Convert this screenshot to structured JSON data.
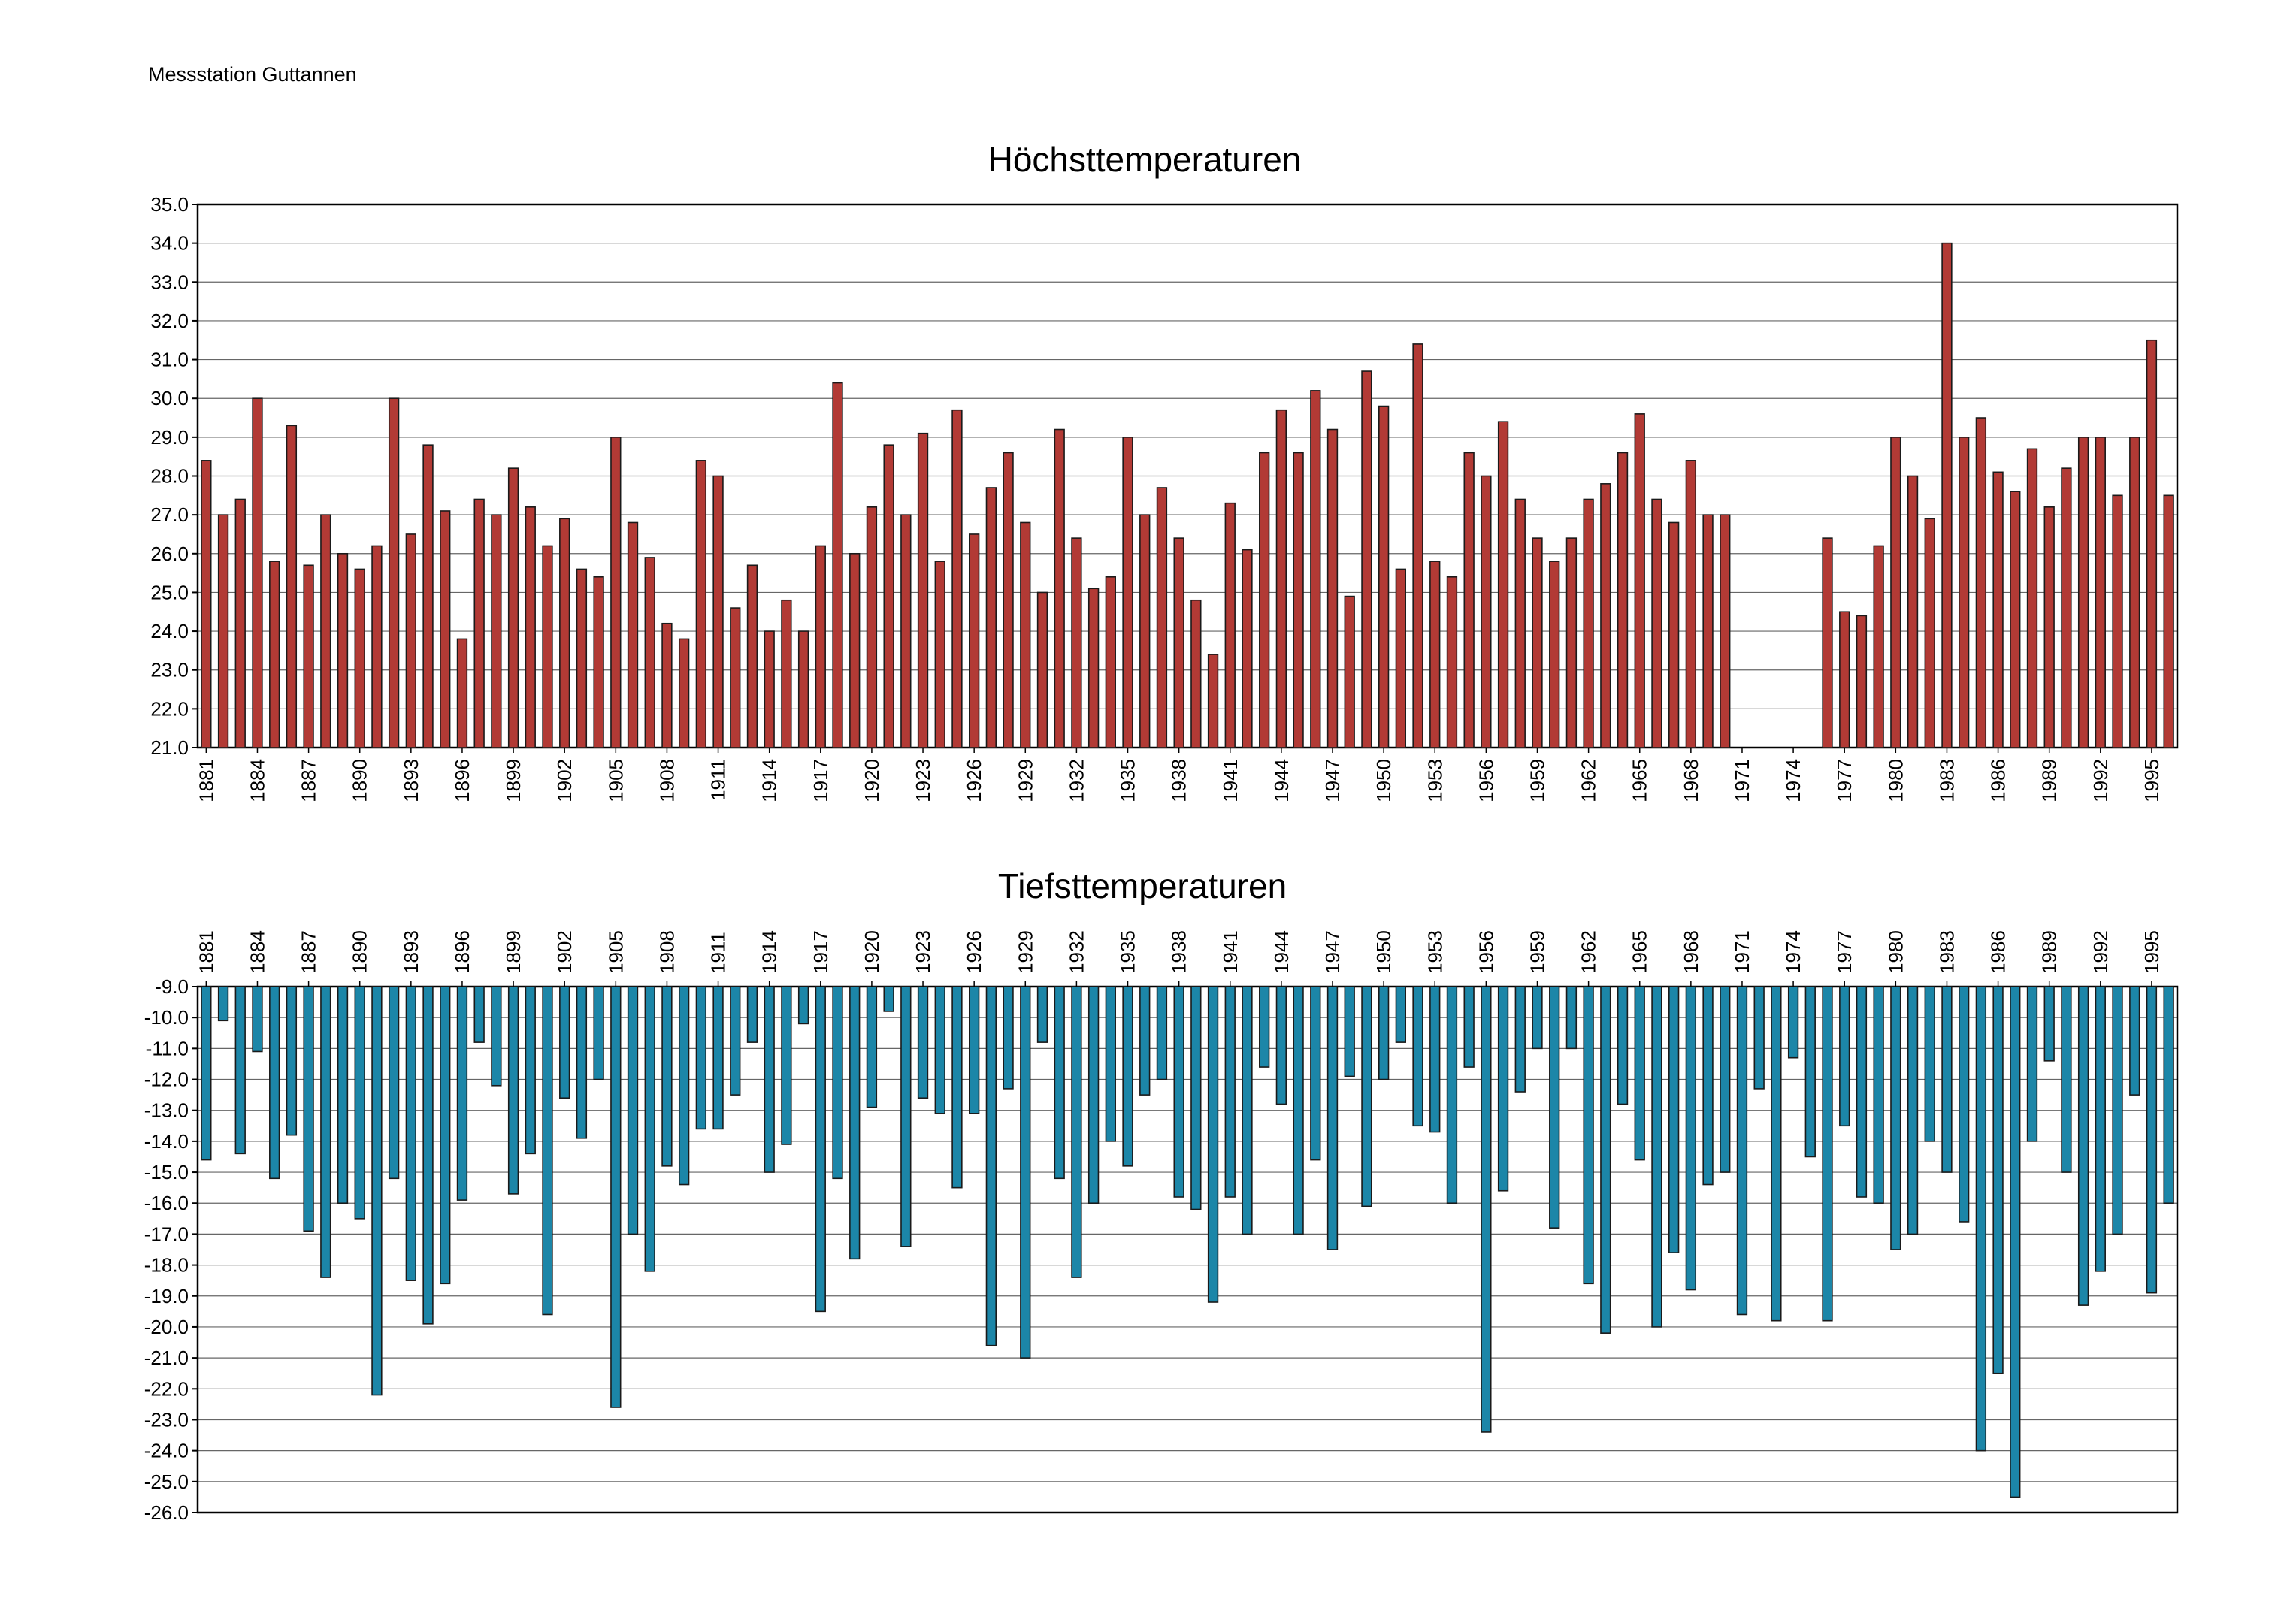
{
  "page": {
    "station": "Messstation Guttannen"
  },
  "colors": {
    "max_fill": "#b23a35",
    "min_fill": "#1c86a8",
    "stroke": "#1a1a1a",
    "grid": "#666666"
  },
  "chart_data": [
    {
      "id": "max",
      "type": "bar",
      "title": "Höchsttemperaturen",
      "xlabel": "",
      "ylabel": "",
      "ylim": [
        21,
        35
      ],
      "ytick_step": 1,
      "ytick_labels": [
        "21.0",
        "22.0",
        "23.0",
        "24.0",
        "25.0",
        "26.0",
        "27.0",
        "28.0",
        "29.0",
        "30.0",
        "31.0",
        "32.0",
        "33.0",
        "34.0",
        "35.0"
      ],
      "x": [
        1881,
        1882,
        1883,
        1884,
        1885,
        1886,
        1887,
        1888,
        1889,
        1890,
        1891,
        1892,
        1893,
        1894,
        1895,
        1896,
        1897,
        1898,
        1899,
        1900,
        1901,
        1902,
        1903,
        1904,
        1905,
        1906,
        1907,
        1908,
        1909,
        1910,
        1911,
        1912,
        1913,
        1914,
        1915,
        1916,
        1917,
        1918,
        1919,
        1920,
        1921,
        1922,
        1923,
        1924,
        1925,
        1926,
        1927,
        1928,
        1929,
        1930,
        1931,
        1932,
        1933,
        1934,
        1935,
        1936,
        1937,
        1938,
        1939,
        1940,
        1941,
        1942,
        1943,
        1944,
        1945,
        1946,
        1947,
        1948,
        1949,
        1950,
        1951,
        1952,
        1953,
        1954,
        1955,
        1956,
        1957,
        1958,
        1959,
        1960,
        1961,
        1962,
        1963,
        1964,
        1965,
        1966,
        1967,
        1968,
        1969,
        1970,
        1971,
        1972,
        1973,
        1974,
        1975,
        1976,
        1977,
        1978,
        1979,
        1980,
        1981,
        1982,
        1983,
        1984,
        1985,
        1986,
        1987,
        1988,
        1989,
        1990,
        1991,
        1992,
        1993,
        1994,
        1995,
        1996
      ],
      "values": [
        28.4,
        27.0,
        27.4,
        30.0,
        25.8,
        29.3,
        25.7,
        27.0,
        26.0,
        25.6,
        26.2,
        30.0,
        26.5,
        28.8,
        27.1,
        23.8,
        27.4,
        27.0,
        28.2,
        27.2,
        26.2,
        26.9,
        25.6,
        25.4,
        29.0,
        26.8,
        25.9,
        24.2,
        23.8,
        28.4,
        28.0,
        24.6,
        25.7,
        24.0,
        24.8,
        24.0,
        26.2,
        30.4,
        26.0,
        27.2,
        28.8,
        27.0,
        29.1,
        25.8,
        29.7,
        26.5,
        27.7,
        28.6,
        26.8,
        25.0,
        29.2,
        26.4,
        25.1,
        25.4,
        29.0,
        27.0,
        27.7,
        26.4,
        24.8,
        23.4,
        27.3,
        26.1,
        28.6,
        29.7,
        28.6,
        30.2,
        29.2,
        24.9,
        30.7,
        29.8,
        25.6,
        31.4,
        25.8,
        25.4,
        28.6,
        28.0,
        29.4,
        27.4,
        26.4,
        25.8,
        26.4,
        27.4,
        27.8,
        28.6,
        29.6,
        27.4,
        26.8,
        28.4,
        27.0,
        27.0,
        null,
        null,
        null,
        null,
        null,
        26.4,
        24.5,
        24.4,
        26.2,
        29.0,
        28.0,
        26.9,
        34.0,
        29.0,
        29.5,
        28.1,
        27.6,
        28.7,
        27.2,
        28.2,
        29.0,
        29.0,
        27.5,
        29.0,
        31.5,
        27.5
      ],
      "x_tick_labels": [
        "1881",
        "1884",
        "1887",
        "1890",
        "1893",
        "1896",
        "1899",
        "1902",
        "1905",
        "1908",
        "1911",
        "1914",
        "1917",
        "1920",
        "1923",
        "1926",
        "1929",
        "1932",
        "1935",
        "1938",
        "1941",
        "1944",
        "1947",
        "1950",
        "1953",
        "1956",
        "1959",
        "1962",
        "1965",
        "1968",
        "1971",
        "1974",
        "1977",
        "1980",
        "1983",
        "1986",
        "1989",
        "1992",
        "1995"
      ]
    },
    {
      "id": "min",
      "type": "bar",
      "title": "Tiefsttemperaturen",
      "xlabel": "",
      "ylabel": "",
      "ylim": [
        -26,
        -9
      ],
      "ytick_step": 1,
      "ytick_labels": [
        "-9.0",
        "-10.0",
        "-11.0",
        "-12.0",
        "-13.0",
        "-14.0",
        "-15.0",
        "-16.0",
        "-17.0",
        "-18.0",
        "-19.0",
        "-20.0",
        "-21.0",
        "-22.0",
        "-23.0",
        "-24.0",
        "-25.0",
        "-26.0"
      ],
      "x": [
        1881,
        1882,
        1883,
        1884,
        1885,
        1886,
        1887,
        1888,
        1889,
        1890,
        1891,
        1892,
        1893,
        1894,
        1895,
        1896,
        1897,
        1898,
        1899,
        1900,
        1901,
        1902,
        1903,
        1904,
        1905,
        1906,
        1907,
        1908,
        1909,
        1910,
        1911,
        1912,
        1913,
        1914,
        1915,
        1916,
        1917,
        1918,
        1919,
        1920,
        1921,
        1922,
        1923,
        1924,
        1925,
        1926,
        1927,
        1928,
        1929,
        1930,
        1931,
        1932,
        1933,
        1934,
        1935,
        1936,
        1937,
        1938,
        1939,
        1940,
        1941,
        1942,
        1943,
        1944,
        1945,
        1946,
        1947,
        1948,
        1949,
        1950,
        1951,
        1952,
        1953,
        1954,
        1955,
        1956,
        1957,
        1958,
        1959,
        1960,
        1961,
        1962,
        1963,
        1964,
        1965,
        1966,
        1967,
        1968,
        1969,
        1970,
        1971,
        1972,
        1973,
        1974,
        1975,
        1976,
        1977,
        1978,
        1979,
        1980,
        1981,
        1982,
        1983,
        1984,
        1985,
        1986,
        1987,
        1988,
        1989,
        1990,
        1991,
        1992,
        1993,
        1994,
        1995,
        1996
      ],
      "values": [
        -14.6,
        -10.1,
        -14.4,
        -11.1,
        -15.2,
        -13.8,
        -16.9,
        -18.4,
        -16.0,
        -16.5,
        -22.2,
        -15.2,
        -18.5,
        -19.9,
        -18.6,
        -15.9,
        -10.8,
        -12.2,
        -15.7,
        -14.4,
        -19.6,
        -12.6,
        -13.9,
        -12.0,
        -22.6,
        -17.0,
        -18.2,
        -14.8,
        -15.4,
        -13.6,
        -13.6,
        -12.5,
        -10.8,
        -15.0,
        -14.1,
        -10.2,
        -19.5,
        -15.2,
        -17.8,
        -12.9,
        -9.8,
        -17.4,
        -12.6,
        -13.1,
        -15.5,
        -13.1,
        -20.6,
        -12.3,
        -21.0,
        -10.8,
        -15.2,
        -18.4,
        -16.0,
        -14.0,
        -14.8,
        -12.5,
        -12.0,
        -15.8,
        -16.2,
        -19.2,
        -15.8,
        -17.0,
        -11.6,
        -12.8,
        -17.0,
        -14.6,
        -17.5,
        -11.9,
        -16.1,
        -12.0,
        -10.8,
        -13.5,
        -13.7,
        -16.0,
        -11.6,
        -23.4,
        -15.6,
        -12.4,
        -11.0,
        -16.8,
        -11.0,
        -18.6,
        -20.2,
        -12.8,
        -14.6,
        -20.0,
        -17.6,
        -18.8,
        -15.4,
        -15.0,
        -19.6,
        -12.3,
        -19.8,
        -11.3,
        -14.5,
        -19.8,
        -13.5,
        -15.8,
        -16.0,
        -17.5,
        -17.0,
        -14.0,
        -15.0,
        -16.6,
        -24.0,
        -21.5,
        -25.5,
        -14.0,
        -11.4,
        -15.0,
        -19.3,
        -18.2,
        -17.0,
        -12.5,
        -18.9,
        -16.0
      ],
      "x_tick_labels": [
        "1881",
        "1884",
        "1887",
        "1890",
        "1893",
        "1896",
        "1899",
        "1902",
        "1905",
        "1908",
        "1911",
        "1914",
        "1917",
        "1920",
        "1923",
        "1926",
        "1929",
        "1932",
        "1935",
        "1938",
        "1941",
        "1944",
        "1947",
        "1950",
        "1953",
        "1956",
        "1959",
        "1962",
        "1965",
        "1968",
        "1971",
        "1974",
        "1977",
        "1980",
        "1983",
        "1986",
        "1989",
        "1992",
        "1995"
      ]
    }
  ]
}
